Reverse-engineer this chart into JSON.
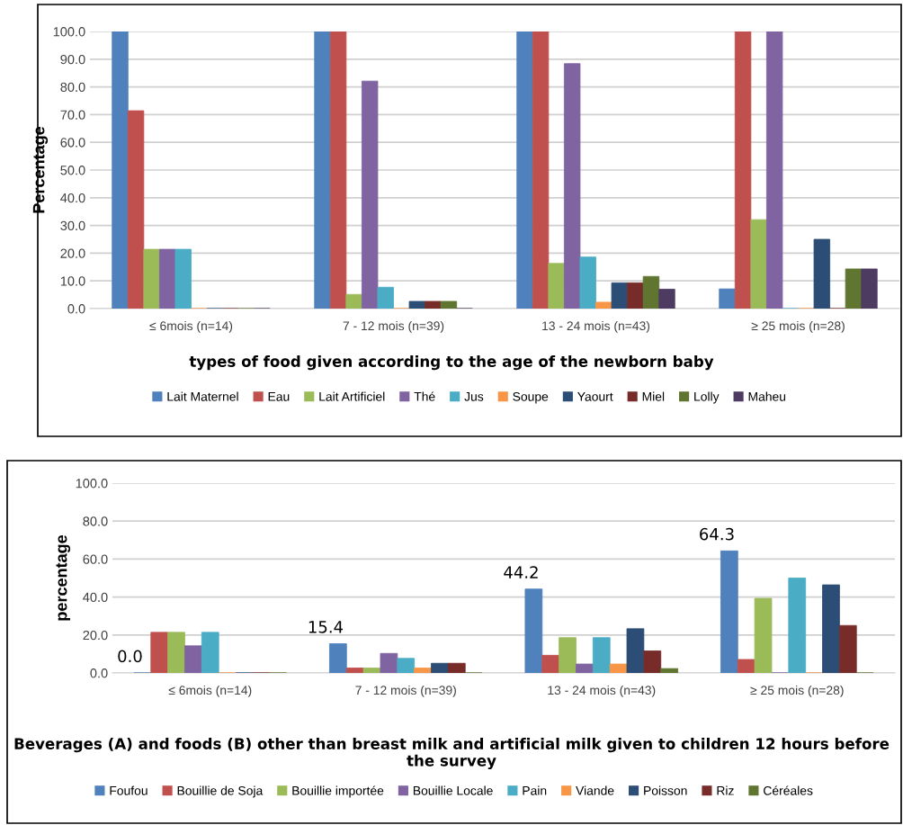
{
  "chart_data": [
    {
      "type": "bar",
      "xlabel": "types of food given according to the age of the newborn baby",
      "ylabel": "Percentage",
      "categories": [
        "≤ 6mois (n=14)",
        "7 - 12 mois (n=39)",
        "13 - 24 mois (n=43)",
        "≥ 25 mois (n=28)"
      ],
      "series": [
        {
          "name": "Lait Maternel",
          "color": "#4f81bd",
          "values": [
            100,
            100,
            100,
            7.1
          ]
        },
        {
          "name": "Eau",
          "color": "#c0504d",
          "values": [
            71.4,
            100,
            100,
            100
          ]
        },
        {
          "name": "Lait Artificiel",
          "color": "#9bbb59",
          "values": [
            21.4,
            5.1,
            16.3,
            32.1
          ]
        },
        {
          "name": "Thé",
          "color": "#8064a2",
          "values": [
            21.4,
            82.1,
            88.4,
            100
          ]
        },
        {
          "name": "Jus",
          "color": "#4bacc6",
          "values": [
            21.4,
            7.7,
            18.6,
            0
          ]
        },
        {
          "name": "Soupe",
          "color": "#f79646",
          "values": [
            0,
            0,
            2.3,
            0
          ]
        },
        {
          "name": "Yaourt",
          "color": "#2c4d75",
          "values": [
            0,
            2.6,
            9.3,
            25.0
          ]
        },
        {
          "name": "Miel",
          "color": "#772c2a",
          "values": [
            0,
            2.6,
            9.3,
            0
          ]
        },
        {
          "name": "Lolly",
          "color": "#5f7530",
          "values": [
            0,
            2.6,
            11.6,
            14.3
          ]
        },
        {
          "name": "Maheu",
          "color": "#4d3b62",
          "values": [
            0,
            0,
            7.0,
            14.3
          ]
        }
      ],
      "ylim": [
        0,
        100
      ],
      "yticks": [
        {
          "value": 0,
          "label": "0.0"
        },
        {
          "value": 10,
          "label": "10.0"
        },
        {
          "value": 20,
          "label": "20.0"
        },
        {
          "value": 30,
          "label": "30.0"
        },
        {
          "value": 40,
          "label": "40.0"
        },
        {
          "value": 50,
          "label": "50.0"
        },
        {
          "value": 60,
          "label": "60.0"
        },
        {
          "value": 70,
          "label": "70.0"
        },
        {
          "value": 80,
          "label": "80.0"
        },
        {
          "value": 90,
          "label": "90.0"
        },
        {
          "value": 100,
          "label": "100.0"
        }
      ],
      "grid": "y",
      "legend": "bottom"
    },
    {
      "type": "bar",
      "xlabel": "Beverages (A) and foods (B) other than breast milk and artificial milk given to children 12 hours before the survey",
      "ylabel": "percentage",
      "categories": [
        "≤ 6mois (n=14)",
        "7 - 12 mois (n=39)",
        "13 - 24 mois (n=43)",
        "≥ 25 mois (n=28)"
      ],
      "series": [
        {
          "name": "Foufou",
          "color": "#4f81bd",
          "values": [
            0,
            15.4,
            44.2,
            64.3
          ],
          "value_labels": [
            "0.0",
            "15.4",
            "44.2",
            "64.3"
          ]
        },
        {
          "name": "Bouillie de Soja",
          "color": "#c0504d",
          "values": [
            21.4,
            2.6,
            9.3,
            7.1
          ]
        },
        {
          "name": "Bouillie importée",
          "color": "#9bbb59",
          "values": [
            21.4,
            2.6,
            18.6,
            39.3
          ]
        },
        {
          "name": "Bouillie Locale",
          "color": "#8064a2",
          "values": [
            14.3,
            10.3,
            4.7,
            0
          ]
        },
        {
          "name": "Pain",
          "color": "#4bacc6",
          "values": [
            21.4,
            7.7,
            18.6,
            50.0
          ]
        },
        {
          "name": "Viande",
          "color": "#f79646",
          "values": [
            0,
            2.6,
            4.7,
            0
          ]
        },
        {
          "name": "Poisson",
          "color": "#2c4d75",
          "values": [
            0,
            5.1,
            23.3,
            46.4
          ]
        },
        {
          "name": "Riz",
          "color": "#772c2a",
          "values": [
            0,
            5.1,
            11.6,
            25.0
          ]
        },
        {
          "name": "Céréales",
          "color": "#5f7530",
          "values": [
            0,
            0,
            2.3,
            0
          ]
        }
      ],
      "ylim": [
        0,
        100
      ],
      "yticks": [
        {
          "value": 0,
          "label": "0.0"
        },
        {
          "value": 20,
          "label": "20.0"
        },
        {
          "value": 40,
          "label": "40.0"
        },
        {
          "value": 60,
          "label": "60.0"
        },
        {
          "value": 80,
          "label": "80.0"
        },
        {
          "value": 100,
          "label": "100.0"
        }
      ],
      "grid": "y",
      "legend": "bottom"
    }
  ]
}
